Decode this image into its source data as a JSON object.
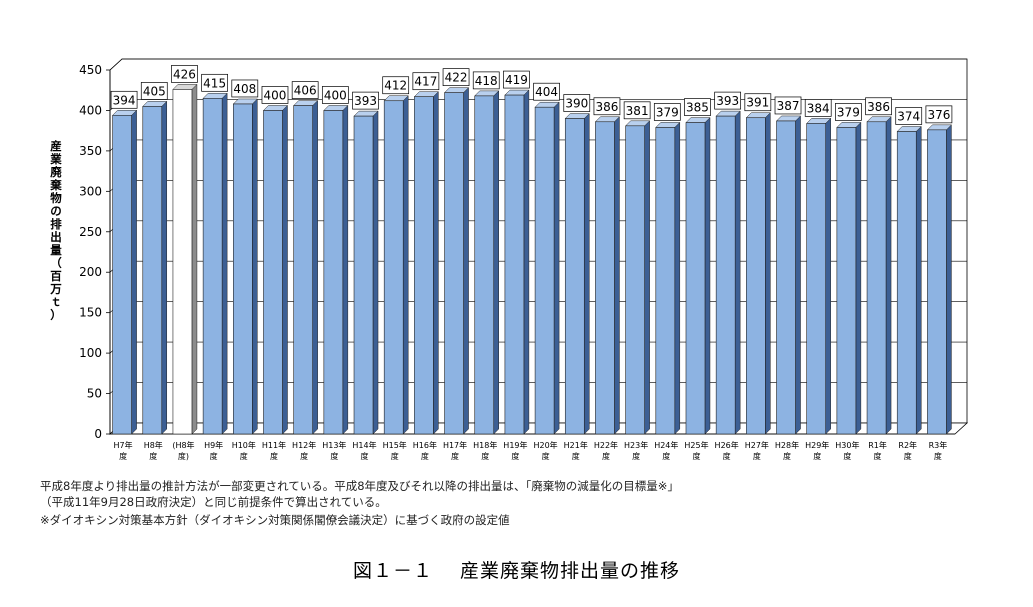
{
  "chart_data": {
    "type": "bar",
    "ylabel": "産業廃棄物の排出量（百万ｔ）",
    "ylim": [
      0,
      450
    ],
    "yticks": [
      0,
      50,
      100,
      150,
      200,
      250,
      300,
      350,
      400,
      450
    ],
    "grid": true,
    "categories": [
      "H7年度",
      "H8年度",
      "(H8年度)",
      "H9年度",
      "H10年度",
      "H11年度",
      "H12年度",
      "H13年度",
      "H14年度",
      "H15年度",
      "H16年度",
      "H17年度",
      "H18年度",
      "H19年度",
      "H20年度",
      "H21年度",
      "H22年度",
      "H23年度",
      "H24年度",
      "H25年度",
      "H26年度",
      "H27年度",
      "H28年度",
      "H29年度",
      "H30年度",
      "R1年度",
      "R2年度",
      "R3年度"
    ],
    "category_lines": [
      [
        "H7年",
        "度"
      ],
      [
        "H8年",
        "度"
      ],
      [
        "(H8年",
        "度)"
      ],
      [
        "H9年",
        "度"
      ],
      [
        "H10年",
        "度"
      ],
      [
        "H11年",
        "度"
      ],
      [
        "H12年",
        "度"
      ],
      [
        "H13年",
        "度"
      ],
      [
        "H14年",
        "度"
      ],
      [
        "H15年",
        "度"
      ],
      [
        "H16年",
        "度"
      ],
      [
        "H17年",
        "度"
      ],
      [
        "H18年",
        "度"
      ],
      [
        "H19年",
        "度"
      ],
      [
        "H20年",
        "度"
      ],
      [
        "H21年",
        "度"
      ],
      [
        "H22年",
        "度"
      ],
      [
        "H23年",
        "度"
      ],
      [
        "H24年",
        "度"
      ],
      [
        "H25年",
        "度"
      ],
      [
        "H26年",
        "度"
      ],
      [
        "H27年",
        "度"
      ],
      [
        "H28年",
        "度"
      ],
      [
        "H29年",
        "度"
      ],
      [
        "H30年",
        "度"
      ],
      [
        "R1年",
        "度"
      ],
      [
        "R2年",
        "度"
      ],
      [
        "R3年",
        "度"
      ]
    ],
    "values": [
      394,
      405,
      426,
      415,
      408,
      400,
      406,
      400,
      393,
      412,
      417,
      422,
      418,
      419,
      404,
      390,
      386,
      381,
      379,
      385,
      393,
      391,
      387,
      384,
      379,
      386,
      374,
      376
    ],
    "data_labels": [
      "394",
      "405",
      "426",
      "415",
      "408",
      "400",
      "406",
      "400",
      "393",
      "412",
      "417",
      "422",
      "418",
      "419",
      "404",
      "390",
      "386",
      "381",
      "379",
      "385",
      "393",
      "391",
      "387",
      "384",
      "379",
      "386",
      "374",
      "376"
    ],
    "highlight_index": 2,
    "colors": {
      "bar": "#8db3e2",
      "bar_side": "#3c5f94",
      "bar_top": "#b9d0ee",
      "highlight": "#ffffff",
      "highlight_side": "#8c8c8c",
      "highlight_top": "#d9d9d9",
      "wall": "#ffffff",
      "grid": "#000000"
    }
  },
  "notes": {
    "line1": "平成8年度より排出量の推計方法が一部変更されている。平成8年度及びそれ以降の排出量は、「廃棄物の減量化の目標量※」",
    "line2": "（平成11年9月28日政府決定）と同じ前提条件で算出されている。",
    "line3": "※ダイオキシン対策基本方針（ダイオキシン対策関係閣僚会議決定）に基づく政府の設定値"
  },
  "figure_title": "図１－１　 産業廃棄物排出量の推移"
}
